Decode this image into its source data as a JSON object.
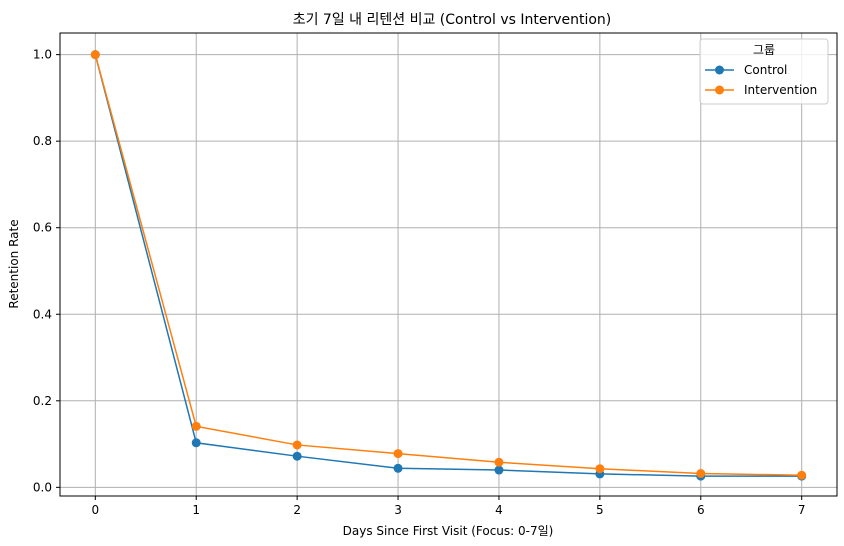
{
  "chart_data": {
    "type": "line",
    "title": "초기 7일 내 리텐션 비교 (Control vs Intervention)",
    "xlabel": "Days Since First Visit (Focus: 0-7일)",
    "ylabel": "Retention Rate",
    "x": [
      0,
      1,
      2,
      3,
      4,
      5,
      6,
      7
    ],
    "xlim": [
      -0.35,
      7.35
    ],
    "ylim": [
      -0.02,
      1.05
    ],
    "xticks": [
      "0",
      "1",
      "2",
      "3",
      "4",
      "5",
      "6",
      "7"
    ],
    "yticks": [
      "0.0",
      "0.2",
      "0.4",
      "0.6",
      "0.8",
      "1.0"
    ],
    "grid": true,
    "legend": {
      "title": "그룹",
      "placement": "top-right"
    },
    "series": [
      {
        "name": "Control",
        "color": "#1f77b4",
        "marker": "circle",
        "values": [
          1.0,
          0.103,
          0.072,
          0.044,
          0.04,
          0.031,
          0.026,
          0.026
        ]
      },
      {
        "name": "Intervention",
        "color": "#ff7f0e",
        "marker": "circle",
        "values": [
          1.0,
          0.141,
          0.098,
          0.078,
          0.058,
          0.043,
          0.032,
          0.028
        ]
      }
    ]
  }
}
